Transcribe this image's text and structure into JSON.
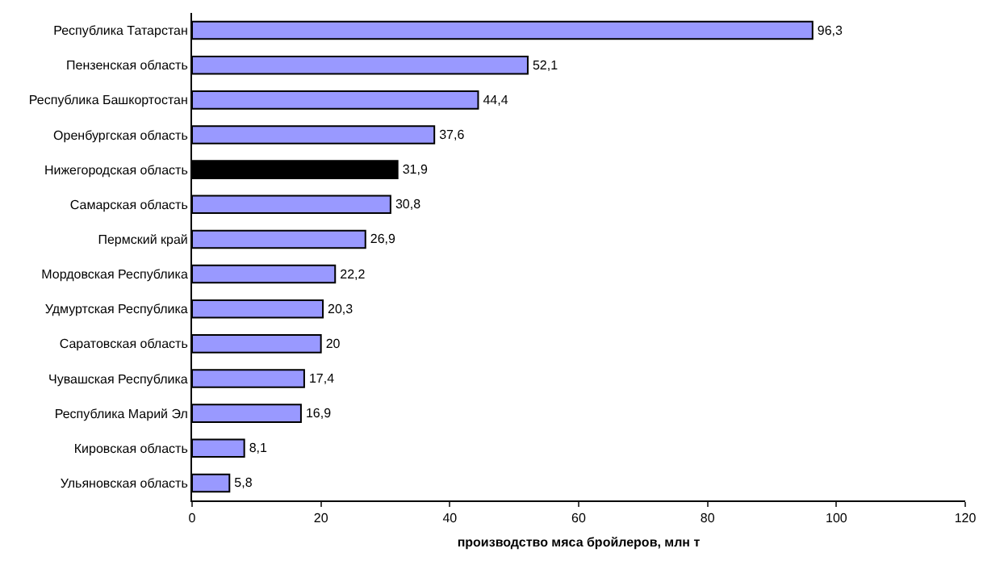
{
  "chart_data": {
    "type": "bar",
    "orientation": "horizontal",
    "xlabel": "производство мяса бройлеров, млн т",
    "categories": [
      "Республика Татарстан",
      "Пензенская область",
      "Республика Башкортостан",
      "Оренбургская область",
      "Нижегородская область",
      "Самарская область",
      "Пермский край",
      "Мордовская Республика",
      "Удмуртская Республика",
      "Саратовская область",
      "Чувашская Республика",
      "Республика Марий Эл",
      "Кировская область",
      "Ульяновская область"
    ],
    "values": [
      96.3,
      52.1,
      44.4,
      37.6,
      31.9,
      30.8,
      26.9,
      22.2,
      20.3,
      20,
      17.4,
      16.9,
      8.1,
      5.8
    ],
    "value_labels": [
      "96,3",
      "52,1",
      "44,4",
      "37,6",
      "31,9",
      "30,8",
      "26,9",
      "22,2",
      "20,3",
      "20",
      "17,4",
      "16,9",
      "8,1",
      "5,8"
    ],
    "colors": [
      "#9999ff",
      "#9999ff",
      "#9999ff",
      "#9999ff",
      "#000000",
      "#9999ff",
      "#9999ff",
      "#9999ff",
      "#9999ff",
      "#9999ff",
      "#9999ff",
      "#9999ff",
      "#9999ff",
      "#9999ff"
    ],
    "xlim": [
      0,
      120
    ],
    "xticks": [
      0,
      20,
      40,
      60,
      80,
      100,
      120
    ]
  }
}
